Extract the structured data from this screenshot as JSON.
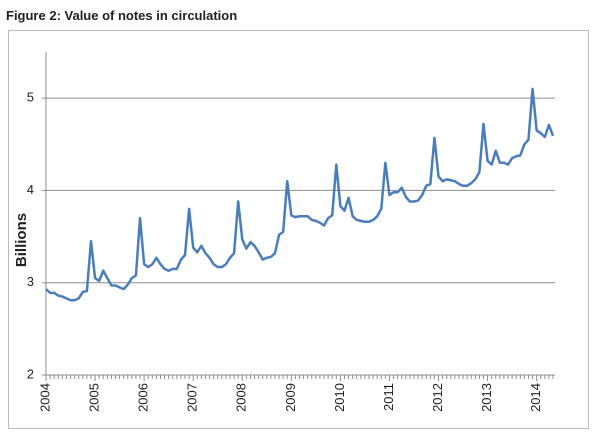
{
  "chart_data": {
    "type": "line",
    "title": "Figure 2: Value of notes in circulation",
    "y_label": "Billions",
    "categories": [
      "2004",
      null,
      null,
      null,
      null,
      null,
      null,
      null,
      null,
      null,
      null,
      null,
      "2005",
      null,
      null,
      null,
      null,
      null,
      null,
      null,
      null,
      null,
      null,
      null,
      "2006",
      null,
      null,
      null,
      null,
      null,
      null,
      null,
      null,
      null,
      null,
      null,
      "2007",
      null,
      null,
      null,
      null,
      null,
      null,
      null,
      null,
      null,
      null,
      null,
      "2008",
      null,
      null,
      null,
      null,
      null,
      null,
      null,
      null,
      null,
      null,
      null,
      "2009",
      null,
      null,
      null,
      null,
      null,
      null,
      null,
      null,
      null,
      null,
      null,
      "2010",
      null,
      null,
      null,
      null,
      null,
      null,
      null,
      null,
      null,
      null,
      null,
      "2011",
      null,
      null,
      null,
      null,
      null,
      null,
      null,
      null,
      null,
      null,
      null,
      "2012",
      null,
      null,
      null,
      null,
      null,
      null,
      null,
      null,
      null,
      null,
      null,
      "2013",
      null,
      null,
      null,
      null,
      null,
      null,
      null,
      null,
      null,
      null,
      null,
      "2014",
      null,
      null,
      null,
      null
    ],
    "values": [
      2.93,
      2.89,
      2.89,
      2.86,
      2.85,
      2.83,
      2.81,
      2.81,
      2.83,
      2.9,
      2.91,
      3.45,
      3.05,
      3.02,
      3.13,
      3.05,
      2.97,
      2.97,
      2.95,
      2.93,
      2.98,
      3.05,
      3.08,
      3.7,
      3.2,
      3.17,
      3.2,
      3.27,
      3.2,
      3.15,
      3.13,
      3.15,
      3.15,
      3.25,
      3.3,
      3.8,
      3.38,
      3.33,
      3.4,
      3.32,
      3.27,
      3.2,
      3.17,
      3.17,
      3.2,
      3.27,
      3.32,
      3.88,
      3.47,
      3.37,
      3.44,
      3.4,
      3.33,
      3.25,
      3.27,
      3.28,
      3.32,
      3.52,
      3.55,
      4.1,
      3.73,
      3.71,
      3.72,
      3.72,
      3.72,
      3.68,
      3.67,
      3.65,
      3.62,
      3.7,
      3.73,
      4.28,
      3.83,
      3.78,
      3.92,
      3.72,
      3.68,
      3.67,
      3.66,
      3.66,
      3.68,
      3.72,
      3.8,
      4.3,
      3.95,
      3.98,
      3.98,
      4.03,
      3.93,
      3.88,
      3.88,
      3.89,
      3.95,
      4.05,
      4.07,
      4.57,
      4.15,
      4.1,
      4.12,
      4.11,
      4.1,
      4.07,
      4.05,
      4.05,
      4.08,
      4.12,
      4.2,
      4.72,
      4.32,
      4.28,
      4.43,
      4.3,
      4.3,
      4.28,
      4.35,
      4.37,
      4.38,
      4.5,
      4.55,
      5.1,
      4.65,
      4.62,
      4.58,
      4.71,
      4.59
    ],
    "color": "#4a7ebb",
    "ylim": [
      2,
      5.5
    ],
    "yticks": [
      2,
      3,
      4,
      5
    ],
    "grid": true
  }
}
